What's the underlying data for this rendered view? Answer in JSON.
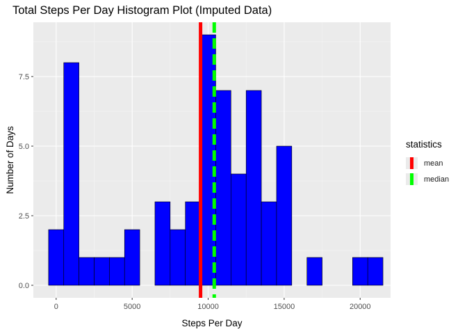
{
  "chart_data": {
    "type": "bar",
    "title": "Total Steps Per Day Histogram Plot (Imputed Data)",
    "xlabel": "Steps Per Day",
    "ylabel": "Number of Days",
    "xlim": [
      -1500,
      22000
    ],
    "ylim": [
      -0.45,
      9.45
    ],
    "bin_width": 1000,
    "bins": [
      {
        "start": -500,
        "end": 500,
        "count": 2
      },
      {
        "start": 500,
        "end": 1500,
        "count": 8
      },
      {
        "start": 1500,
        "end": 2500,
        "count": 1
      },
      {
        "start": 2500,
        "end": 3500,
        "count": 1
      },
      {
        "start": 3500,
        "end": 4500,
        "count": 1
      },
      {
        "start": 4500,
        "end": 5500,
        "count": 2
      },
      {
        "start": 5500,
        "end": 6500,
        "count": 0
      },
      {
        "start": 6500,
        "end": 7500,
        "count": 3
      },
      {
        "start": 7500,
        "end": 8500,
        "count": 2
      },
      {
        "start": 8500,
        "end": 9500,
        "count": 3
      },
      {
        "start": 9500,
        "end": 10500,
        "count": 9
      },
      {
        "start": 10500,
        "end": 11500,
        "count": 7
      },
      {
        "start": 11500,
        "end": 12500,
        "count": 4
      },
      {
        "start": 12500,
        "end": 13500,
        "count": 7
      },
      {
        "start": 13500,
        "end": 14500,
        "count": 3
      },
      {
        "start": 14500,
        "end": 15500,
        "count": 5
      },
      {
        "start": 15500,
        "end": 16500,
        "count": 0
      },
      {
        "start": 16500,
        "end": 17500,
        "count": 1
      },
      {
        "start": 17500,
        "end": 18500,
        "count": 0
      },
      {
        "start": 18500,
        "end": 19500,
        "count": 0
      },
      {
        "start": 19500,
        "end": 20500,
        "count": 1
      },
      {
        "start": 20500,
        "end": 21500,
        "count": 1
      }
    ],
    "x_ticks": [
      0,
      5000,
      10000,
      15000,
      20000
    ],
    "x_tick_labels": [
      "0",
      "5000",
      "10000",
      "15000",
      "20000"
    ],
    "y_ticks": [
      0,
      2.5,
      5,
      7.5
    ],
    "y_tick_labels": [
      "0.0",
      "2.5",
      "5.0",
      "7.5"
    ],
    "statistics": [
      {
        "name": "mean",
        "value": 9500,
        "color": "#ff0000",
        "linetype": "solid"
      },
      {
        "name": "median",
        "value": 10400,
        "color": "#00ff00",
        "linetype": "dashed"
      }
    ],
    "bar_fill": "#0000ff",
    "bar_outline": "#000000",
    "panel_background": "#ebebeb",
    "grid": true,
    "legend_title": "statistics",
    "legend_position": "right"
  }
}
